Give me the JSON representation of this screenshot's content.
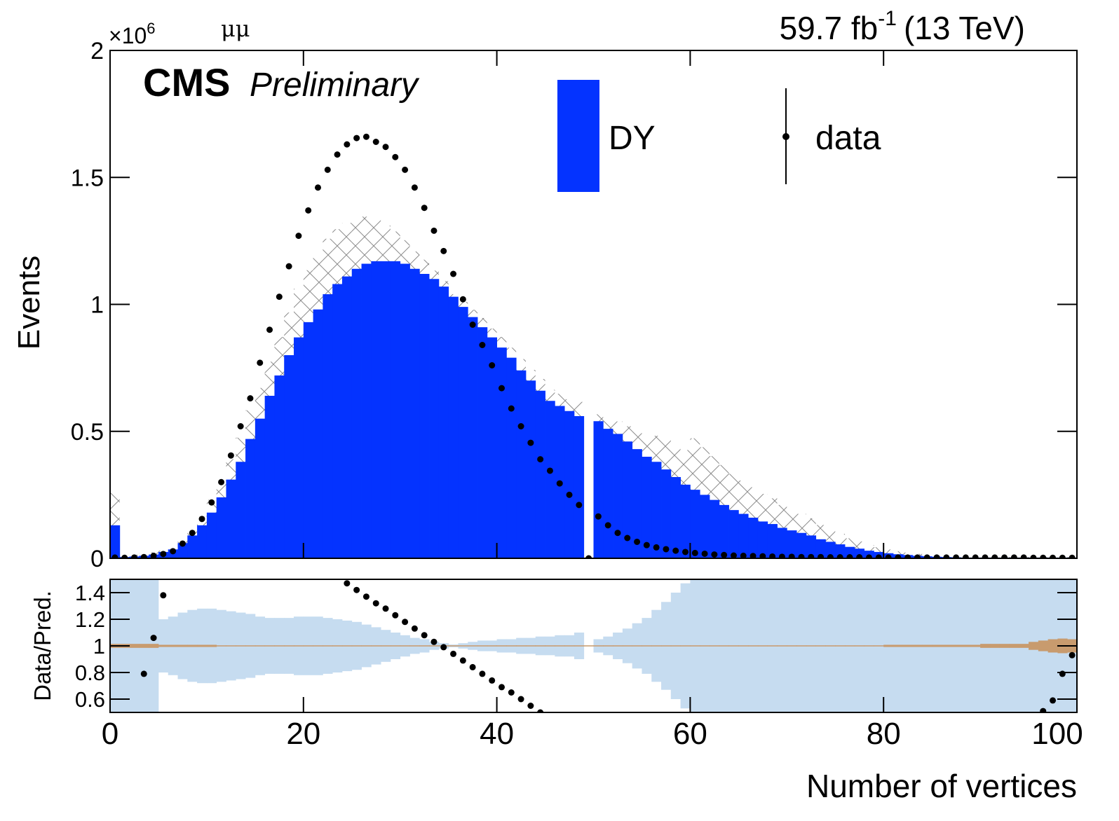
{
  "chart_data": [
    {
      "type": "histogram",
      "experiment": "CMS",
      "status": "Preliminary",
      "channel": "μμ",
      "lumi": "59.7 fb",
      "lumi_exponent": "-1",
      "energy": "(13 TeV)",
      "y_label": "Events",
      "y_multiplier": "×10",
      "y_multiplier_exponent": "6",
      "xlim": [
        0,
        100
      ],
      "ylim": [
        0,
        2
      ],
      "yticks": [
        0,
        0.5,
        1,
        1.5,
        2
      ],
      "legend": "top-right",
      "bins": [
        0,
        1,
        2,
        3,
        4,
        5,
        6,
        7,
        8,
        9,
        10,
        11,
        12,
        13,
        14,
        15,
        16,
        17,
        18,
        19,
        20,
        21,
        22,
        23,
        24,
        25,
        26,
        27,
        28,
        29,
        30,
        31,
        32,
        33,
        34,
        35,
        36,
        37,
        38,
        39,
        40,
        41,
        42,
        43,
        44,
        45,
        46,
        47,
        48,
        49,
        50,
        51,
        52,
        53,
        54,
        55,
        56,
        57,
        58,
        59,
        60,
        61,
        62,
        63,
        64,
        65,
        66,
        67,
        68,
        69,
        70,
        71,
        72,
        73,
        74,
        75,
        76,
        77,
        78,
        79,
        80,
        81,
        82,
        83,
        84,
        85,
        86,
        87,
        88,
        89,
        90,
        91,
        92,
        93,
        94,
        95,
        96,
        97,
        98,
        99,
        100
      ],
      "series": [
        {
          "name": "DY",
          "color": "#0433ff",
          "hatch_color": "#8c8c8c",
          "values": [
            0.13,
            0.005,
            0.007,
            0.01,
            0.015,
            0.025,
            0.035,
            0.06,
            0.09,
            0.13,
            0.18,
            0.24,
            0.31,
            0.38,
            0.47,
            0.55,
            0.64,
            0.72,
            0.8,
            0.87,
            0.93,
            0.98,
            1.04,
            1.08,
            1.11,
            1.14,
            1.16,
            1.17,
            1.17,
            1.17,
            1.16,
            1.14,
            1.12,
            1.1,
            1.07,
            1.03,
            0.99,
            0.95,
            0.91,
            0.87,
            0.83,
            0.79,
            0.74,
            0.7,
            0.66,
            0.62,
            0.6,
            0.58,
            0.56,
            0,
            0.54,
            0.51,
            0.49,
            0.46,
            0.43,
            0.4,
            0.38,
            0.35,
            0.32,
            0.29,
            0.27,
            0.25,
            0.23,
            0.21,
            0.19,
            0.175,
            0.16,
            0.145,
            0.135,
            0.12,
            0.11,
            0.1,
            0.09,
            0.075,
            0.065,
            0.055,
            0.045,
            0.038,
            0.03,
            0.025,
            0.02,
            0.016,
            0.013,
            0.01,
            0.008,
            0.006,
            0.005,
            0.004,
            0.003,
            0.003,
            0.003,
            0.003,
            0.003,
            0.003,
            0.003,
            0.003,
            0.003,
            0.003,
            0.003,
            0.003
          ],
          "relative_uncertainty": [
            1,
            1,
            1,
            1,
            0.6,
            0.2,
            0.22,
            0.25,
            0.27,
            0.28,
            0.28,
            0.27,
            0.26,
            0.25,
            0.24,
            0.22,
            0.21,
            0.21,
            0.21,
            0.22,
            0.22,
            0.22,
            0.21,
            0.2,
            0.19,
            0.18,
            0.16,
            0.14,
            0.12,
            0.1,
            0.08,
            0.06,
            0.05,
            0.03,
            0.02,
            0.01,
            0.02,
            0.03,
            0.04,
            0.04,
            0.05,
            0.05,
            0.06,
            0.06,
            0.07,
            0.07,
            0.08,
            0.08,
            0.1,
            0,
            0.05,
            0.07,
            0.1,
            0.13,
            0.17,
            0.21,
            0.27,
            0.33,
            0.4,
            0.47,
            0.75,
            0.75,
            0.75,
            0.75,
            0.75,
            0.75,
            0.75,
            0.75,
            0.75,
            0.75,
            0.75,
            0.75,
            0.75,
            0.75,
            0.75,
            0.75,
            0.75,
            0.75,
            0.75,
            0.75,
            0.75,
            0.75,
            0.75,
            0.75,
            0.75,
            0.75,
            0.75,
            0.75,
            0.75,
            0.75,
            0.75,
            0.75,
            0.75,
            0.75,
            0.75,
            0.75,
            0.75,
            0.75,
            0.75,
            0.75
          ]
        },
        {
          "name": "data",
          "color": "#000000",
          "values": [
            0.003,
            0.002,
            0.003,
            0.005,
            0.01,
            0.017,
            0.028,
            0.058,
            0.1,
            0.155,
            0.22,
            0.3,
            0.405,
            0.52,
            0.63,
            0.77,
            0.9,
            1.03,
            1.15,
            1.27,
            1.37,
            1.46,
            1.53,
            1.59,
            1.63,
            1.655,
            1.66,
            1.64,
            1.62,
            1.58,
            1.53,
            1.46,
            1.38,
            1.29,
            1.21,
            1.12,
            1.02,
            0.92,
            0.84,
            0.76,
            0.67,
            0.59,
            0.52,
            0.455,
            0.39,
            0.345,
            0.295,
            0.25,
            0.21,
            0,
            0.165,
            0.13,
            0.1,
            0.08,
            0.065,
            0.052,
            0.043,
            0.036,
            0.03,
            0.025,
            0.021,
            0.018,
            0.015,
            0.013,
            0.011,
            0.01,
            0.009,
            0.008,
            0.007,
            0.006,
            0.006,
            0.005,
            0.005,
            0.005,
            0.004,
            0.004,
            0.004,
            0.004,
            0.003,
            0.003,
            0.003,
            0.003,
            0.003,
            0.003,
            0.003,
            0.003,
            0.003,
            0.003,
            0.003,
            0.003,
            0.003,
            0.003,
            0.003,
            0.003,
            0.003,
            0.002,
            0.002,
            0.002,
            0.002,
            0.002
          ]
        }
      ]
    },
    {
      "type": "ratio",
      "y_label": "Data/Pred.",
      "x_label": "Number of vertices",
      "xlim": [
        0,
        100
      ],
      "xticks": [
        0,
        20,
        40,
        60,
        80,
        100
      ],
      "ylim": [
        0.5,
        1.5
      ],
      "yticks": [
        0.6,
        0.8,
        1,
        1.2,
        1.4
      ],
      "band_color": "#c6dcf0",
      "stat_color": "#c89b6e",
      "values": [
        null,
        null,
        null,
        0.79,
        1.06,
        1.38,
        null,
        null,
        null,
        null,
        null,
        null,
        null,
        null,
        null,
        null,
        null,
        null,
        null,
        null,
        null,
        null,
        null,
        null,
        1.47,
        1.42,
        1.37,
        1.32,
        1.28,
        1.23,
        1.18,
        1.13,
        1.08,
        1.03,
        0.99,
        0.94,
        0.89,
        0.84,
        0.79,
        0.74,
        0.69,
        0.65,
        0.6,
        0.55,
        0.5,
        null,
        null,
        null,
        null,
        null,
        null,
        null,
        null,
        null,
        null,
        null,
        null,
        null,
        null,
        null,
        null,
        null,
        null,
        null,
        null,
        null,
        null,
        null,
        null,
        null,
        null,
        null,
        null,
        null,
        null,
        null,
        null,
        null,
        null,
        null,
        null,
        null,
        null,
        null,
        null,
        null,
        null,
        null,
        null,
        null,
        null,
        null,
        null,
        null,
        null,
        null,
        0.51,
        0.59,
        0.79,
        0.93
      ],
      "stat_uncertainty": [
        0.015,
        0.015,
        0.015,
        0.015,
        0.015,
        0.008,
        0.008,
        0.008,
        0.008,
        0.008,
        0.008,
        0.004,
        0.004,
        0.004,
        0.004,
        0.004,
        0.004,
        0.004,
        0.004,
        0.004,
        0.004,
        0.004,
        0.004,
        0.004,
        0.004,
        0.004,
        0.004,
        0.004,
        0.004,
        0.004,
        0.004,
        0.004,
        0.004,
        0.004,
        0.004,
        0.004,
        0.004,
        0.004,
        0.004,
        0.004,
        0.004,
        0.004,
        0.004,
        0.004,
        0.004,
        0.004,
        0.004,
        0.004,
        0.004,
        0.004,
        0.004,
        0.004,
        0.004,
        0.004,
        0.004,
        0.004,
        0.004,
        0.004,
        0.004,
        0.004,
        0.004,
        0.004,
        0.004,
        0.004,
        0.004,
        0.004,
        0.004,
        0.004,
        0.004,
        0.004,
        0.004,
        0.004,
        0.004,
        0.004,
        0.004,
        0.004,
        0.004,
        0.004,
        0.004,
        0.004,
        0.008,
        0.008,
        0.008,
        0.008,
        0.008,
        0.008,
        0.008,
        0.008,
        0.008,
        0.008,
        0.015,
        0.015,
        0.015,
        0.015,
        0.015,
        0.03,
        0.04,
        0.05,
        0.055,
        0.05
      ]
    }
  ]
}
